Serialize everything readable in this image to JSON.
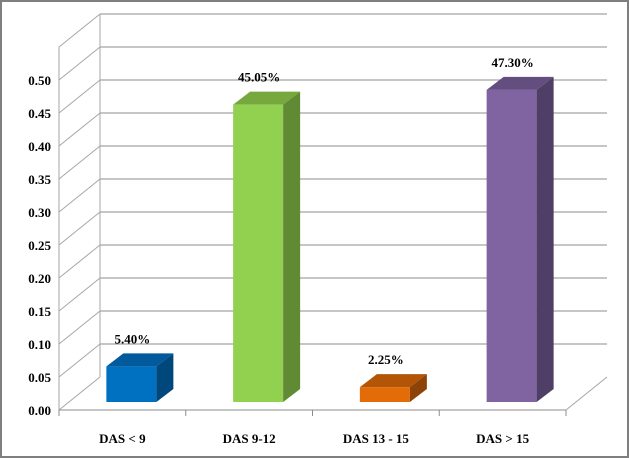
{
  "chart_data": {
    "type": "bar",
    "title": "",
    "xlabel": "",
    "ylabel": "",
    "categories": [
      "DAS < 9",
      "DAS 9-12",
      "DAS 13 - 15",
      "DAS > 15"
    ],
    "values": [
      0.054,
      0.4505,
      0.0225,
      0.473
    ],
    "data_labels": [
      "5.40%",
      "45.05%",
      "2.25%",
      "47.30%"
    ],
    "colors": [
      {
        "front": "#0070c0",
        "top": "#005a9c",
        "side": "#00477b"
      },
      {
        "front": "#92d050",
        "top": "#76a83e",
        "side": "#608a33"
      },
      {
        "front": "#e36c09",
        "top": "#b35507",
        "side": "#8e4306"
      },
      {
        "front": "#8064a2",
        "top": "#644e80",
        "side": "#4f3e66"
      }
    ],
    "ylim": [
      0,
      0.5
    ],
    "yticks": [
      "0.00",
      "0.05",
      "0.10",
      "0.15",
      "0.20",
      "0.25",
      "0.30",
      "0.35",
      "0.40",
      "0.45",
      "0.50"
    ],
    "grid": true,
    "legend": "none",
    "style": "3d-column"
  }
}
